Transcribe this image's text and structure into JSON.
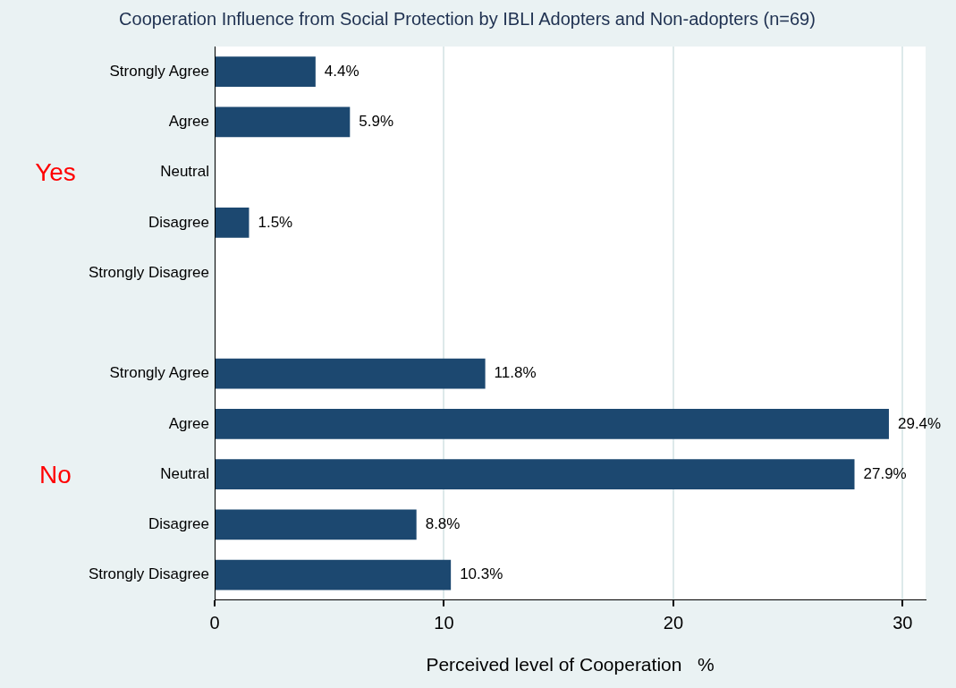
{
  "chart_data": {
    "type": "bar",
    "orientation": "horizontal",
    "title": "Cooperation Influence from Social Protection by IBLI Adopters and Non-adopters (n=69)",
    "xlabel": "Perceived level of Cooperation   %",
    "categories": [
      "Strongly Agree",
      "Agree",
      "Neutral",
      "Disagree",
      "Strongly Disagree",
      null,
      "Strongly Agree",
      "Agree",
      "Neutral",
      "Disagree",
      "Strongly Disagree"
    ],
    "values": [
      4.4,
      5.9,
      0,
      1.5,
      0,
      null,
      11.8,
      29.4,
      27.9,
      8.8,
      10.3
    ],
    "value_labels": [
      "4.4%",
      "5.9%",
      null,
      "1.5%",
      null,
      null,
      "11.8%",
      "29.4%",
      "27.9%",
      "8.8%",
      "10.3%"
    ],
    "color": "#1c4870",
    "xlim": [
      0,
      31
    ],
    "xticks": [
      0,
      10,
      20,
      30
    ],
    "grid": "x",
    "annotations": [
      "Yes",
      "No"
    ]
  }
}
